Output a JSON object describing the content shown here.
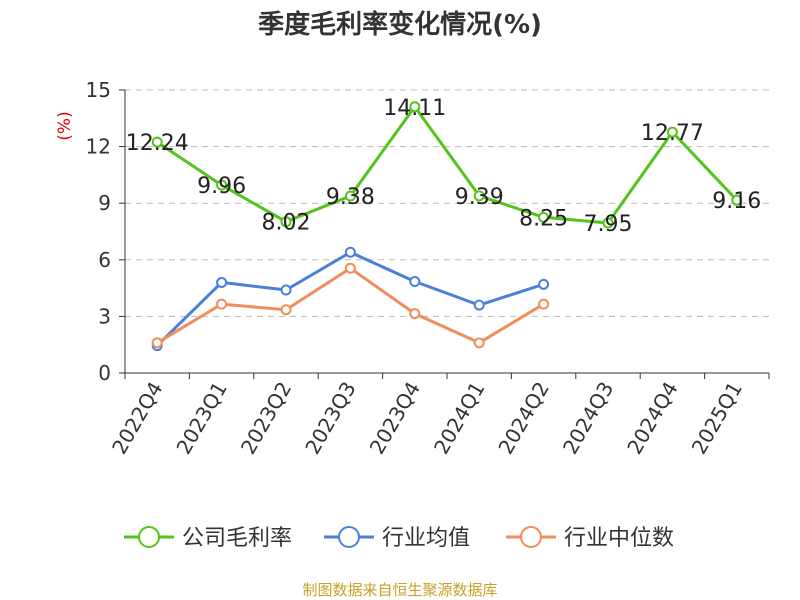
{
  "title": "季度毛利率变化情况(%)",
  "source_note": "制图数据来自恒生聚源数据库",
  "colors": {
    "company": "#52c41a",
    "industry_avg": "#4a7fdc",
    "industry_median": "#f28c5b",
    "ylabel": "#e00000",
    "source": "#c8a028",
    "grid": "#bbbbbb",
    "axis": "#333333"
  },
  "chart_data": {
    "type": "line",
    "title": "季度毛利率变化情况(%)",
    "xlabel": "",
    "ylabel": "(%)",
    "ylim": [
      0,
      15
    ],
    "yticks": [
      0,
      3,
      6,
      9,
      12,
      15
    ],
    "grid": "horizontal-dashed",
    "legend_position": "bottom",
    "categories": [
      "2022Q4",
      "2023Q1",
      "2023Q2",
      "2023Q3",
      "2023Q4",
      "2024Q1",
      "2024Q2",
      "2024Q3",
      "2024Q4",
      "2025Q1"
    ],
    "series": [
      {
        "name": "公司毛利率",
        "color": "#52c41a",
        "values": [
          12.24,
          9.96,
          8.02,
          9.38,
          14.11,
          9.39,
          8.25,
          7.95,
          12.77,
          9.16
        ],
        "labels": [
          "12.24",
          "9.96",
          "8.02",
          "9.38",
          "14.11",
          "9.39",
          "8.25",
          "7.95",
          "12.77",
          "9.16"
        ]
      },
      {
        "name": "行业均值",
        "color": "#4a7fdc",
        "values": [
          1.45,
          4.8,
          4.4,
          6.4,
          4.85,
          3.6,
          4.7,
          null,
          null,
          null
        ]
      },
      {
        "name": "行业中位数",
        "color": "#f28c5b",
        "values": [
          1.6,
          3.65,
          3.35,
          5.55,
          3.15,
          1.6,
          3.65,
          null,
          null,
          null
        ]
      }
    ]
  }
}
